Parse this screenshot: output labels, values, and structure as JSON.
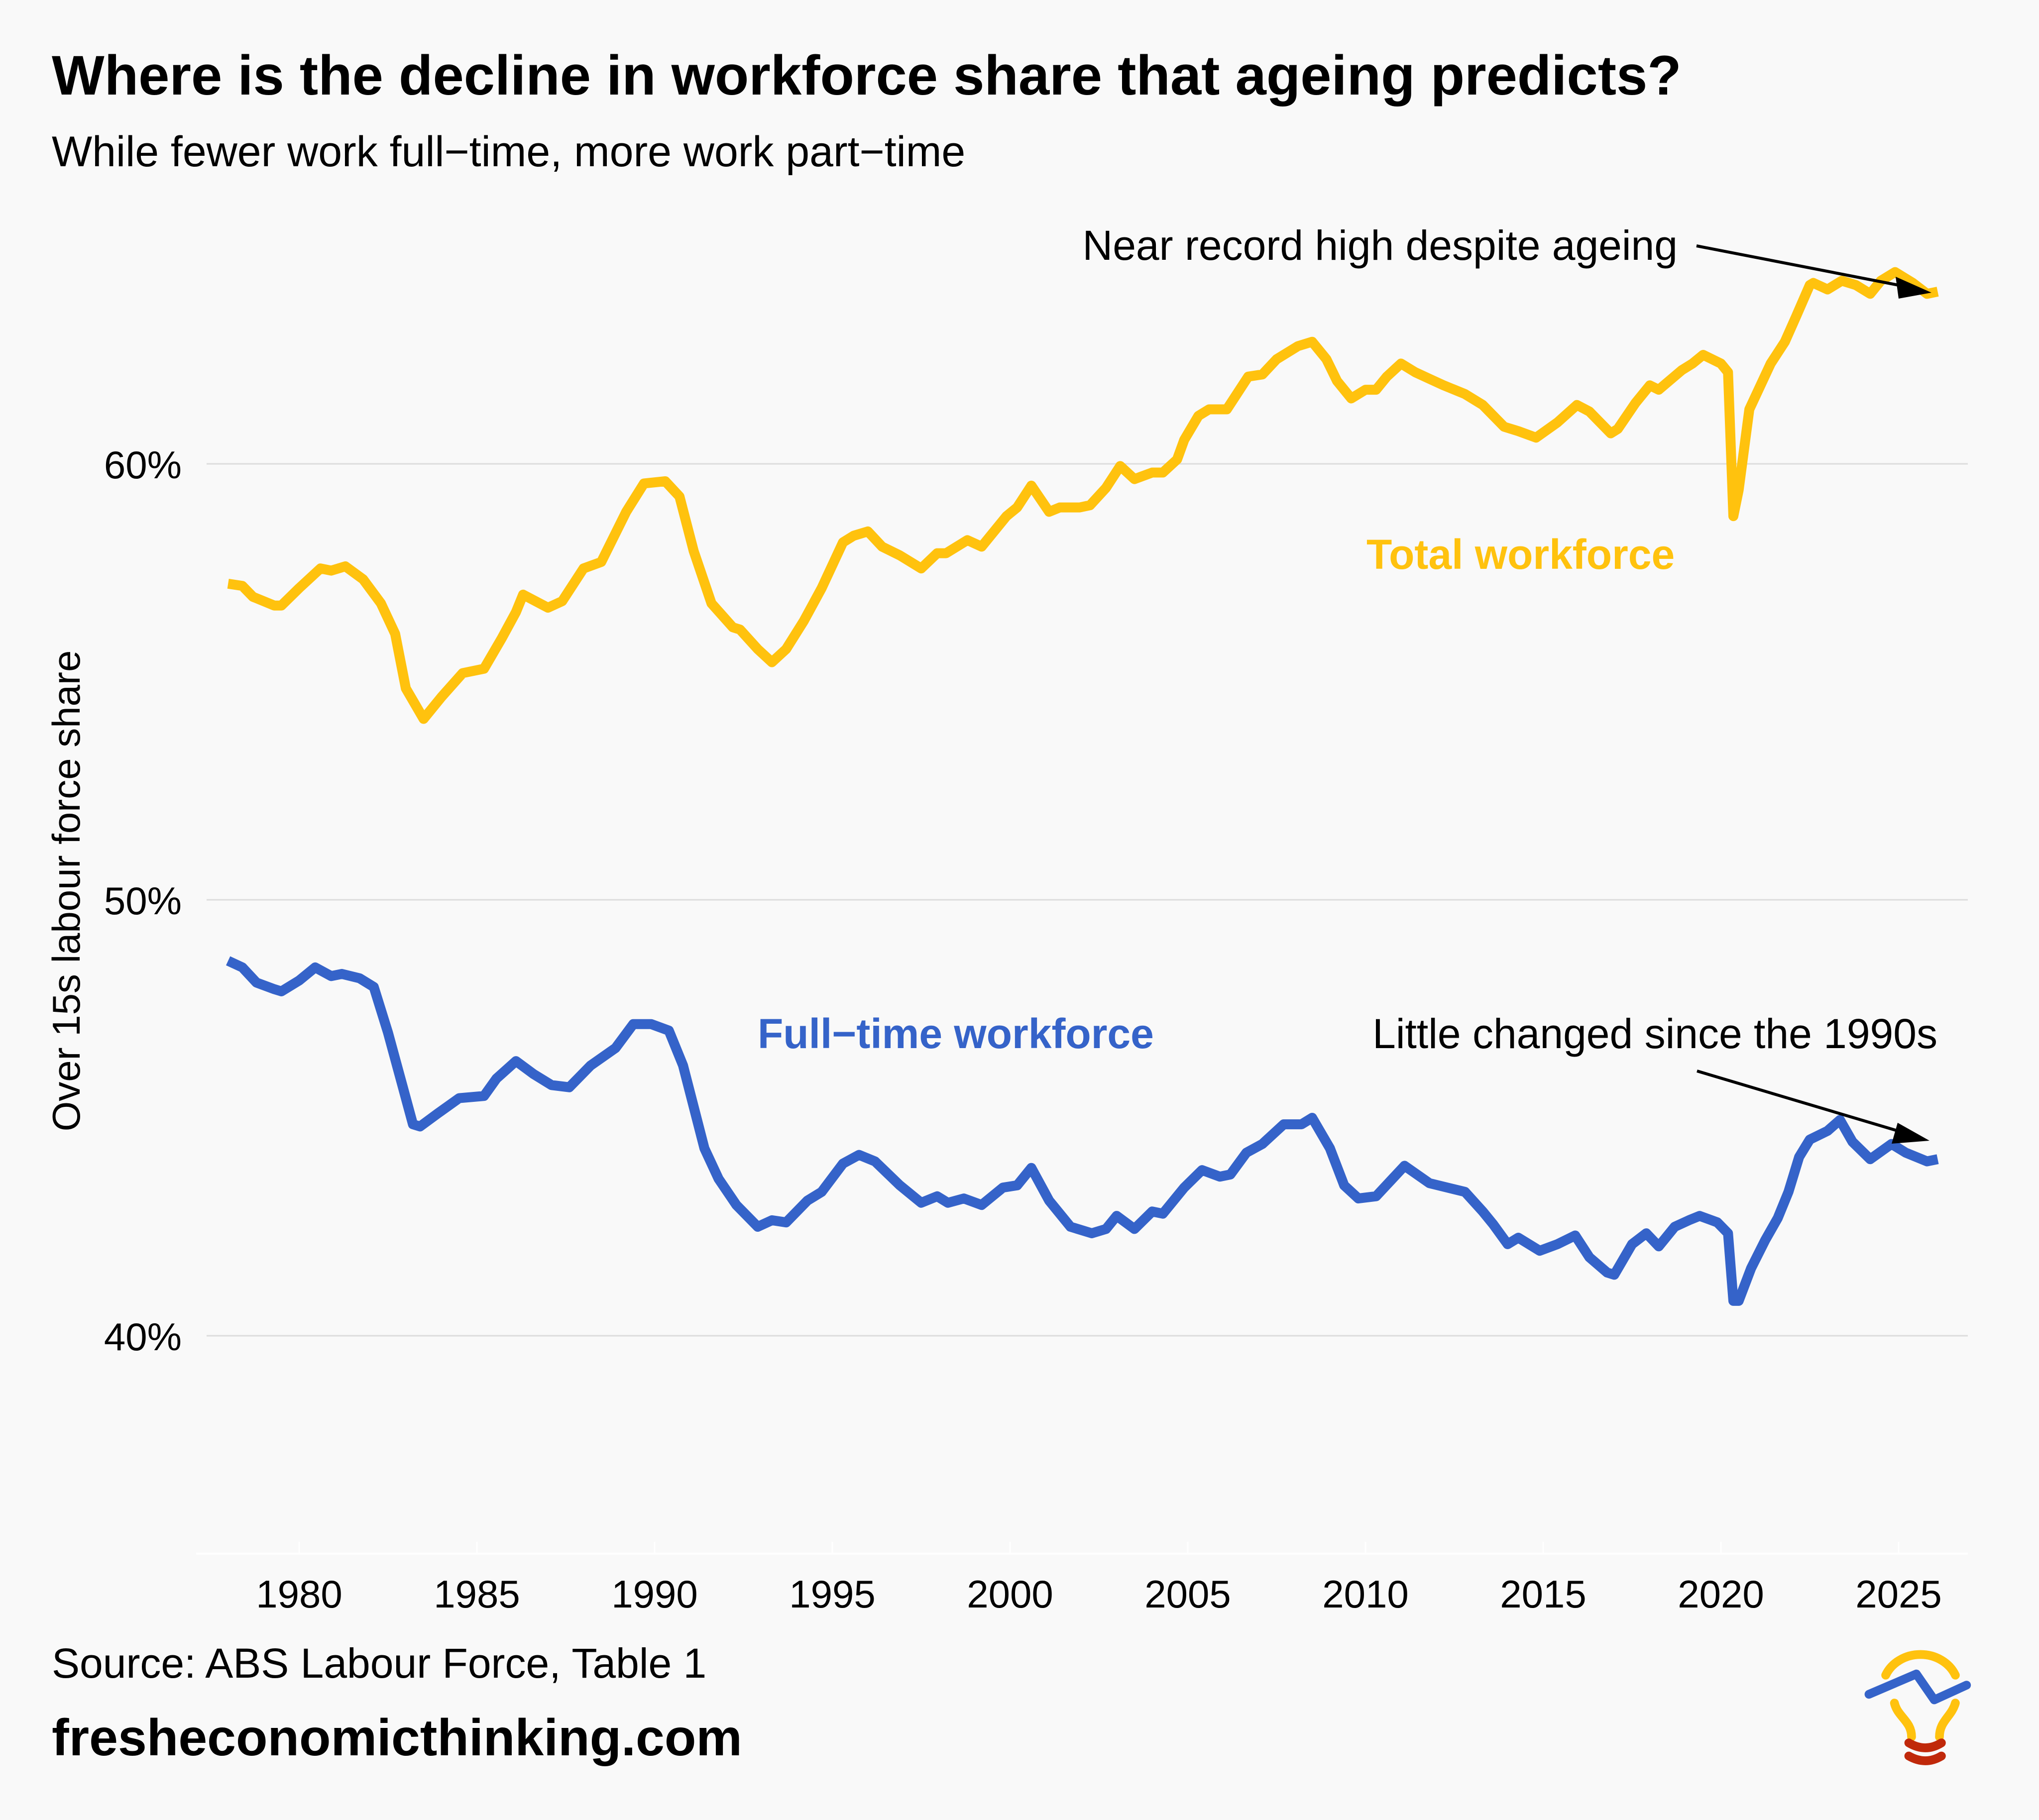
{
  "header": {
    "title": "Where is the decline in workforce share that ageing predicts?",
    "subtitle": "While fewer work full−time, more work part−time"
  },
  "footer": {
    "source": "Source: ABS Labour Force, Table 1",
    "site": "fresheconomicthinking.com",
    "logo_icon": "lightbulb-chart-logo-icon"
  },
  "colors": {
    "background": "#f9f9f9",
    "total": "#ffc20e",
    "fulltime": "#3563c9",
    "grid": "#dddddd",
    "text": "#000000",
    "logo_base": "#c0290b"
  },
  "chart_data": {
    "type": "line",
    "title": "Where is the decline in workforce share that ageing predicts?",
    "subtitle": "While fewer work full−time, more work part−time",
    "xlabel": "",
    "ylabel": "Over 15s labour force share",
    "xlim": [
      1975.5,
      2027.5
    ],
    "ylim": [
      35.6,
      66
    ],
    "x_ticks": [
      1980,
      1985,
      1990,
      1995,
      2000,
      2005,
      2010,
      2015,
      2020,
      2025
    ],
    "x_tick_labels": [
      "1980",
      "1985",
      "1990",
      "1995",
      "2000",
      "2005",
      "2010",
      "2015",
      "2020",
      "2025"
    ],
    "y_ticks": [
      40,
      50,
      60
    ],
    "y_tick_labels": [
      "40%",
      "50%",
      "60%"
    ],
    "grid": "horizontal",
    "legend": "none (direct labels)",
    "series": [
      {
        "name": "Total workforce",
        "label": "Total workforce",
        "color": "#ffc20e",
        "points": [
          [
            1978.0,
            57.25
          ],
          [
            1978.4,
            57.2
          ],
          [
            1978.7,
            56.95
          ],
          [
            1979.3,
            56.75
          ],
          [
            1979.5,
            56.75
          ],
          [
            1980.0,
            57.15
          ],
          [
            1980.6,
            57.6
          ],
          [
            1980.9,
            57.55
          ],
          [
            1981.3,
            57.65
          ],
          [
            1981.8,
            57.35
          ],
          [
            1982.3,
            56.8
          ],
          [
            1982.7,
            56.1
          ],
          [
            1983.0,
            54.85
          ],
          [
            1983.5,
            54.15
          ],
          [
            1984.0,
            54.65
          ],
          [
            1984.6,
            55.2
          ],
          [
            1985.2,
            55.3
          ],
          [
            1985.7,
            56.0
          ],
          [
            1986.1,
            56.6
          ],
          [
            1986.3,
            57.0
          ],
          [
            1987.0,
            56.7
          ],
          [
            1987.4,
            56.85
          ],
          [
            1988.0,
            57.6
          ],
          [
            1988.5,
            57.75
          ],
          [
            1989.2,
            58.9
          ],
          [
            1989.7,
            59.55
          ],
          [
            1990.3,
            59.6
          ],
          [
            1990.7,
            59.25
          ],
          [
            1991.1,
            58.0
          ],
          [
            1991.6,
            56.8
          ],
          [
            1992.2,
            56.25
          ],
          [
            1992.4,
            56.2
          ],
          [
            1992.9,
            55.75
          ],
          [
            1993.3,
            55.45
          ],
          [
            1993.7,
            55.75
          ],
          [
            1994.2,
            56.4
          ],
          [
            1994.7,
            57.15
          ],
          [
            1995.3,
            58.2
          ],
          [
            1995.6,
            58.35
          ],
          [
            1996.0,
            58.45
          ],
          [
            1996.4,
            58.1
          ],
          [
            1996.9,
            57.9
          ],
          [
            1997.5,
            57.6
          ],
          [
            1997.95,
            57.95
          ],
          [
            1998.2,
            57.95
          ],
          [
            1998.8,
            58.25
          ],
          [
            1999.2,
            58.1
          ],
          [
            1999.9,
            58.8
          ],
          [
            2000.2,
            59.0
          ],
          [
            2000.6,
            59.5
          ],
          [
            2001.1,
            58.9
          ],
          [
            2001.4,
            59.0
          ],
          [
            2001.96,
            59.0
          ],
          [
            2002.25,
            59.05
          ],
          [
            2002.7,
            59.45
          ],
          [
            2003.1,
            59.95
          ],
          [
            2003.5,
            59.65
          ],
          [
            2004.0,
            59.8
          ],
          [
            2004.3,
            59.8
          ],
          [
            2004.7,
            60.1
          ],
          [
            2004.9,
            60.55
          ],
          [
            2005.3,
            61.1
          ],
          [
            2005.6,
            61.25
          ],
          [
            2006.1,
            61.25
          ],
          [
            2006.3,
            61.5
          ],
          [
            2006.7,
            62.0
          ],
          [
            2007.1,
            62.05
          ],
          [
            2007.5,
            62.4
          ],
          [
            2008.1,
            62.7
          ],
          [
            2008.5,
            62.8
          ],
          [
            2008.9,
            62.4
          ],
          [
            2009.2,
            61.9
          ],
          [
            2009.6,
            61.5
          ],
          [
            2010.0,
            61.7
          ],
          [
            2010.3,
            61.7
          ],
          [
            2010.6,
            62.0
          ],
          [
            2011.0,
            62.3
          ],
          [
            2011.4,
            62.1
          ],
          [
            2011.8,
            61.95
          ],
          [
            2012.2,
            61.8
          ],
          [
            2012.8,
            61.6
          ],
          [
            2013.3,
            61.35
          ],
          [
            2013.9,
            60.85
          ],
          [
            2014.3,
            60.75
          ],
          [
            2014.8,
            60.6
          ],
          [
            2015.4,
            60.95
          ],
          [
            2015.95,
            61.35
          ],
          [
            2016.3,
            61.2
          ],
          [
            2016.9,
            60.7
          ],
          [
            2017.1,
            60.8
          ],
          [
            2017.6,
            61.4
          ],
          [
            2018.0,
            61.8
          ],
          [
            2018.25,
            61.7
          ],
          [
            2018.9,
            62.15
          ],
          [
            2019.2,
            62.3
          ],
          [
            2019.5,
            62.5
          ],
          [
            2020.0,
            62.3
          ],
          [
            2020.2,
            62.1
          ],
          [
            2020.35,
            58.8
          ],
          [
            2020.5,
            59.4
          ],
          [
            2020.8,
            61.25
          ],
          [
            2021.4,
            62.3
          ],
          [
            2021.8,
            62.8
          ],
          [
            2022.1,
            63.35
          ],
          [
            2022.5,
            64.1
          ],
          [
            2022.6,
            64.15
          ],
          [
            2023.0,
            64.0
          ],
          [
            2023.4,
            64.2
          ],
          [
            2023.8,
            64.1
          ],
          [
            2024.2,
            63.9
          ],
          [
            2024.5,
            64.2
          ],
          [
            2024.9,
            64.4
          ],
          [
            2025.4,
            64.15
          ],
          [
            2025.8,
            63.9
          ],
          [
            2026.1,
            63.95
          ]
        ]
      },
      {
        "name": "Full−time workforce",
        "label": "Full−time workforce",
        "color": "#3563c9",
        "points": [
          [
            1978.0,
            48.6
          ],
          [
            1978.4,
            48.45
          ],
          [
            1978.8,
            48.1
          ],
          [
            1979.3,
            47.95
          ],
          [
            1979.5,
            47.9
          ],
          [
            1980.0,
            48.15
          ],
          [
            1980.45,
            48.45
          ],
          [
            1980.9,
            48.25
          ],
          [
            1981.2,
            48.3
          ],
          [
            1981.7,
            48.2
          ],
          [
            1982.1,
            48.0
          ],
          [
            1982.5,
            46.95
          ],
          [
            1982.9,
            45.75
          ],
          [
            1983.2,
            44.85
          ],
          [
            1983.4,
            44.8
          ],
          [
            1983.9,
            45.1
          ],
          [
            1984.5,
            45.45
          ],
          [
            1985.2,
            45.5
          ],
          [
            1985.55,
            45.9
          ],
          [
            1986.1,
            46.3
          ],
          [
            1986.6,
            46.0
          ],
          [
            1987.1,
            45.75
          ],
          [
            1987.6,
            45.7
          ],
          [
            1988.2,
            46.2
          ],
          [
            1988.9,
            46.6
          ],
          [
            1989.4,
            47.15
          ],
          [
            1989.9,
            47.15
          ],
          [
            1990.4,
            47.0
          ],
          [
            1990.8,
            46.2
          ],
          [
            1991.4,
            44.3
          ],
          [
            1991.8,
            43.6
          ],
          [
            1992.3,
            43.0
          ],
          [
            1992.9,
            42.5
          ],
          [
            1993.3,
            42.65
          ],
          [
            1993.7,
            42.6
          ],
          [
            1994.3,
            43.1
          ],
          [
            1994.7,
            43.3
          ],
          [
            1995.3,
            43.95
          ],
          [
            1995.75,
            44.15
          ],
          [
            1996.2,
            44.0
          ],
          [
            1996.9,
            43.45
          ],
          [
            1997.5,
            43.05
          ],
          [
            1997.95,
            43.2
          ],
          [
            1998.25,
            43.05
          ],
          [
            1998.7,
            43.15
          ],
          [
            1999.2,
            43.0
          ],
          [
            1999.8,
            43.4
          ],
          [
            2000.2,
            43.45
          ],
          [
            2000.6,
            43.85
          ],
          [
            2001.1,
            43.1
          ],
          [
            2001.7,
            42.5
          ],
          [
            2002.3,
            42.35
          ],
          [
            2002.7,
            42.45
          ],
          [
            2003.0,
            42.75
          ],
          [
            2003.5,
            42.45
          ],
          [
            2004.0,
            42.85
          ],
          [
            2004.3,
            42.8
          ],
          [
            2004.9,
            43.4
          ],
          [
            2005.4,
            43.8
          ],
          [
            2005.9,
            43.65
          ],
          [
            2006.2,
            43.7
          ],
          [
            2006.65,
            44.2
          ],
          [
            2007.1,
            44.4
          ],
          [
            2007.7,
            44.85
          ],
          [
            2008.2,
            44.85
          ],
          [
            2008.5,
            45.0
          ],
          [
            2009.0,
            44.3
          ],
          [
            2009.4,
            43.45
          ],
          [
            2009.8,
            43.15
          ],
          [
            2010.3,
            43.2
          ],
          [
            2011.1,
            43.9
          ],
          [
            2011.8,
            43.5
          ],
          [
            2012.3,
            43.4
          ],
          [
            2012.8,
            43.3
          ],
          [
            2013.3,
            42.85
          ],
          [
            2013.6,
            42.55
          ],
          [
            2014.0,
            42.1
          ],
          [
            2014.3,
            42.25
          ],
          [
            2014.9,
            41.95
          ],
          [
            2015.4,
            42.1
          ],
          [
            2015.9,
            42.3
          ],
          [
            2016.3,
            41.8
          ],
          [
            2016.8,
            41.45
          ],
          [
            2017.0,
            41.4
          ],
          [
            2017.5,
            42.1
          ],
          [
            2017.9,
            42.35
          ],
          [
            2018.25,
            42.05
          ],
          [
            2018.7,
            42.5
          ],
          [
            2019.1,
            42.65
          ],
          [
            2019.4,
            42.75
          ],
          [
            2019.9,
            42.6
          ],
          [
            2020.2,
            42.35
          ],
          [
            2020.35,
            40.8
          ],
          [
            2020.5,
            40.8
          ],
          [
            2020.85,
            41.55
          ],
          [
            2021.25,
            42.2
          ],
          [
            2021.6,
            42.7
          ],
          [
            2021.9,
            43.3
          ],
          [
            2022.2,
            44.1
          ],
          [
            2022.5,
            44.5
          ],
          [
            2023.0,
            44.7
          ],
          [
            2023.35,
            44.95
          ],
          [
            2023.7,
            44.45
          ],
          [
            2024.2,
            44.05
          ],
          [
            2024.8,
            44.4
          ],
          [
            2025.2,
            44.2
          ],
          [
            2025.8,
            44.0
          ],
          [
            2026.1,
            44.05
          ]
        ]
      }
    ],
    "annotations": [
      {
        "text": "Near record high despite ageing",
        "arrow_to": [
          2025.9,
          63.95
        ],
        "color": "#000000"
      },
      {
        "text": "Little changed since the 1990s",
        "arrow_to": [
          2025.8,
          44.2
        ],
        "color": "#000000"
      }
    ]
  }
}
